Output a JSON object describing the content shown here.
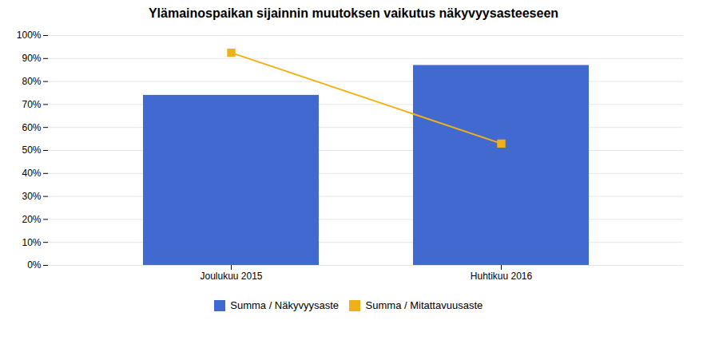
{
  "chart_data": {
    "type": "bar",
    "title": "Ylämainospaikan sijainnin muutoksen vaikutus näkyvyysasteeseen",
    "categories": [
      "Joulukuu 2015",
      "Huhtikuu 2016"
    ],
    "series": [
      {
        "name": "Summa / Näkyvyysaste",
        "type": "bar",
        "values": [
          0.74,
          0.87
        ]
      },
      {
        "name": "Summa / Mitattavuusaste",
        "type": "line",
        "marker": "square",
        "values": [
          0.925,
          0.53
        ]
      }
    ],
    "ylim": [
      0,
      1.0
    ],
    "yticks": [
      {
        "value": 0.0,
        "label": "0%"
      },
      {
        "value": 0.1,
        "label": "10%"
      },
      {
        "value": 0.2,
        "label": "20%"
      },
      {
        "value": 0.3,
        "label": "30%"
      },
      {
        "value": 0.4,
        "label": "40%"
      },
      {
        "value": 0.5,
        "label": "50%"
      },
      {
        "value": 0.6,
        "label": "60%"
      },
      {
        "value": 0.7,
        "label": "70%"
      },
      {
        "value": 0.8,
        "label": "80%"
      },
      {
        "value": 0.9,
        "label": "90%"
      },
      {
        "value": 1.0,
        "label": "100%"
      }
    ],
    "grid": true,
    "legend": "bottom"
  }
}
